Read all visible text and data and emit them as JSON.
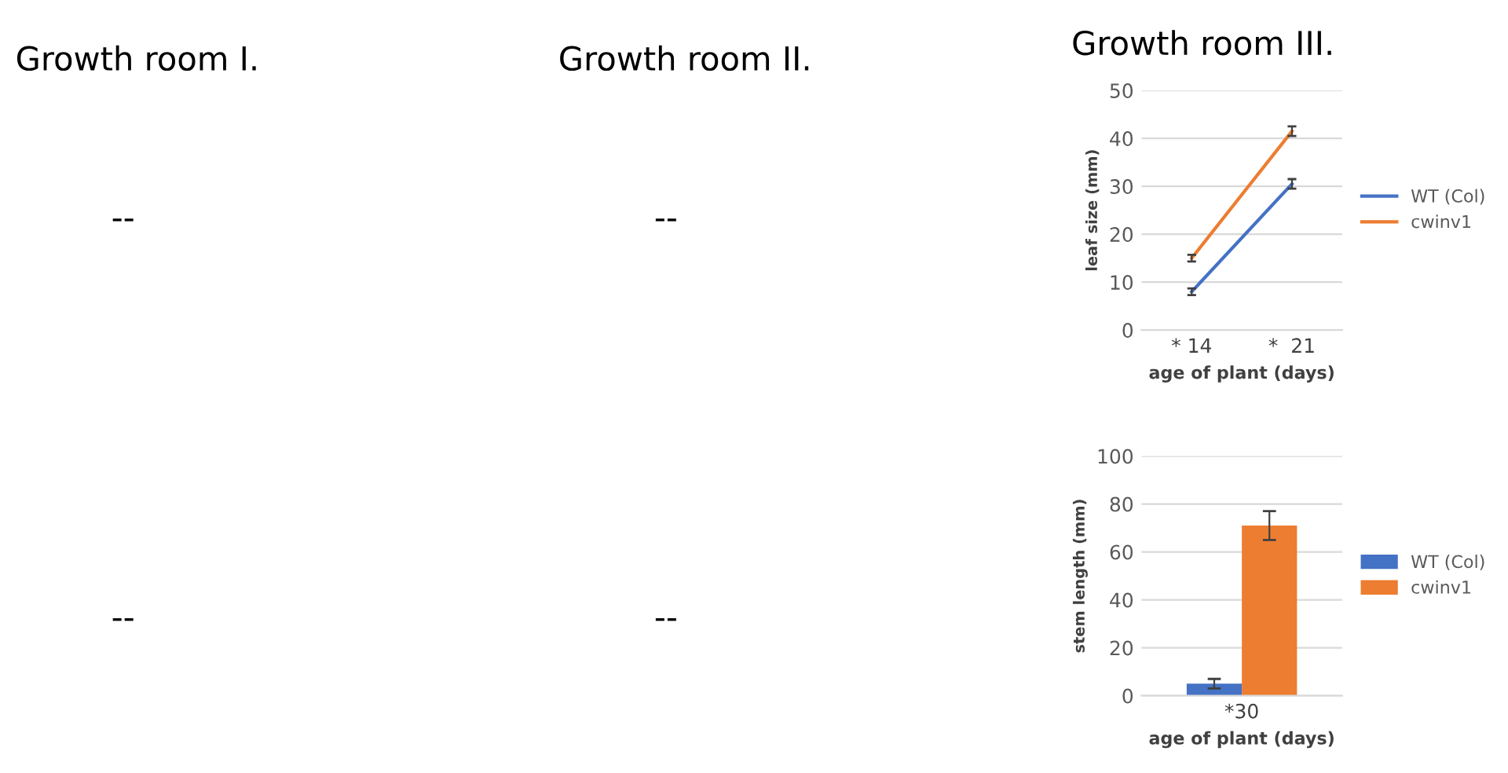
{
  "chart_data": [
    {
      "type": "other",
      "title": "Growth room I.",
      "annotations": [
        "--",
        "--"
      ]
    },
    {
      "type": "other",
      "title": "Growth room II.",
      "annotations": [
        "--",
        "--"
      ]
    },
    {
      "type": "line",
      "title": "Growth room III.",
      "xlabel": "age of plant (days)",
      "ylabel": "leaf size (mm)",
      "categories": [
        "* 14",
        "*  21"
      ],
      "ylim": [
        0,
        50
      ],
      "yticks": [
        0,
        10,
        20,
        30,
        40,
        50
      ],
      "grid": "y",
      "legend": "right",
      "marker": "none",
      "line_style": "solid",
      "series": [
        {
          "name": "WT (Col)",
          "color": "#4472c4",
          "values": [
            8,
            30.5
          ],
          "errors": [
            0.7,
            1
          ]
        },
        {
          "name": "cwinv1",
          "color": "#ed7d31",
          "values": [
            15,
            41.5
          ],
          "errors": [
            0.7,
            1
          ]
        }
      ]
    },
    {
      "type": "bar",
      "xlabel": "age of plant (days)",
      "ylabel": "stem length (mm)",
      "categories": [
        "*30"
      ],
      "ylim": [
        0,
        100
      ],
      "yticks": [
        0,
        20,
        40,
        60,
        80,
        100
      ],
      "grid": "y",
      "legend": "right",
      "series": [
        {
          "name": "WT (Col)",
          "color": "#4472c4",
          "values": [
            5
          ],
          "errors": [
            2
          ]
        },
        {
          "name": "cwinv1",
          "color": "#ed7d31",
          "values": [
            71
          ],
          "errors": [
            6
          ]
        }
      ]
    }
  ]
}
